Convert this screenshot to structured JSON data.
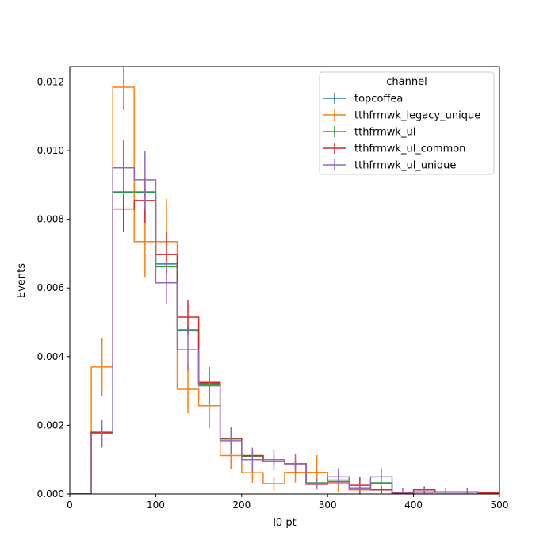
{
  "chart_data": {
    "type": "line",
    "xlabel": "l0 pt",
    "ylabel": "Events",
    "xlim": [
      0,
      500
    ],
    "ylim": [
      0,
      0.01245
    ],
    "grid": false,
    "legend": {
      "title": "channel",
      "placement": "top-right"
    },
    "xticks": [
      0,
      100,
      200,
      300,
      400,
      500
    ],
    "yticks": [
      0.0,
      0.002,
      0.004,
      0.006,
      0.008,
      0.01,
      0.012
    ],
    "xtick_labels": [
      "0",
      "100",
      "200",
      "300",
      "400",
      "500"
    ],
    "ytick_labels": [
      "0.000",
      "0.002",
      "0.004",
      "0.006",
      "0.008",
      "0.010",
      "0.012"
    ],
    "bin_edges": [
      0,
      25,
      50,
      75,
      100,
      125,
      150,
      175,
      200,
      225,
      250,
      275,
      300,
      325,
      350,
      375,
      400,
      425,
      450,
      475,
      500
    ],
    "series": [
      {
        "name": "topcoffea",
        "color": "#1f77b4",
        "values": [
          0.0,
          0.00178,
          0.00878,
          0.00878,
          0.0067,
          0.00478,
          0.00322,
          0.00162,
          0.0011,
          0.00095,
          0.00088,
          0.00032,
          0.0004,
          0.00018,
          0.00032,
          3e-05,
          6e-05,
          6e-05,
          6e-05,
          3e-05
        ],
        "errors": [
          0.0,
          6e-05,
          0.0001,
          0.0001,
          8e-05,
          7e-05,
          6e-05,
          4e-05,
          3e-05,
          3e-05,
          3e-05,
          2e-05,
          2e-05,
          1e-05,
          2e-05,
          1e-05,
          1e-05,
          1e-05,
          1e-05,
          1e-05
        ]
      },
      {
        "name": "tthfrmwk_legacy_unique",
        "color": "#ff7f0e",
        "values": [
          0.0,
          0.0037,
          0.01185,
          0.00735,
          0.00735,
          0.00305,
          0.00257,
          0.00112,
          0.00062,
          0.0003,
          0.00063,
          0.00063,
          0.0003,
          0.00012,
          0.00012,
          0.0,
          0.0,
          0.0,
          0.0,
          0.0
        ],
        "errors": [
          0.0,
          0.00085,
          0.00067,
          0.00105,
          0.00125,
          0.0007,
          0.00065,
          0.0004,
          0.0003,
          0.0002,
          0.0003,
          0.0005,
          0.00025,
          0.00012,
          0.00012,
          0.0,
          0.0,
          0.0,
          0.0,
          0.0
        ]
      },
      {
        "name": "tthfrmwk_ul",
        "color": "#2ca02c",
        "values": [
          0.0,
          0.00178,
          0.0088,
          0.0088,
          0.00662,
          0.00475,
          0.0032,
          0.0016,
          0.0011,
          0.00095,
          0.00088,
          0.00032,
          0.0004,
          0.00018,
          0.00032,
          3e-05,
          6e-05,
          6e-05,
          6e-05,
          3e-05
        ],
        "errors": [
          0.0,
          6e-05,
          0.0001,
          0.0001,
          8e-05,
          7e-05,
          6e-05,
          4e-05,
          3e-05,
          3e-05,
          3e-05,
          2e-05,
          2e-05,
          1e-05,
          2e-05,
          1e-05,
          1e-05,
          1e-05,
          1e-05,
          1e-05
        ]
      },
      {
        "name": "tthfrmwk_ul_common",
        "color": "#d62728",
        "values": [
          0.0,
          0.0018,
          0.0083,
          0.00855,
          0.00698,
          0.00515,
          0.00325,
          0.00162,
          0.00112,
          0.00095,
          0.00088,
          0.00028,
          0.00035,
          0.00025,
          0.00012,
          3e-05,
          0.00012,
          6e-05,
          6e-05,
          3e-05
        ],
        "errors": [
          0.0,
          0.0001,
          0.00065,
          0.00065,
          0.00065,
          0.0005,
          0.0003,
          0.00018,
          0.00012,
          0.0001,
          0.0001,
          6e-05,
          8e-05,
          0.00025,
          0.0001,
          3e-05,
          0.0001,
          5e-05,
          5e-05,
          3e-05
        ]
      },
      {
        "name": "tthfrmwk_ul_unique",
        "color": "#9467bd",
        "values": [
          0.0,
          0.00175,
          0.0095,
          0.00915,
          0.00615,
          0.0042,
          0.00315,
          0.00155,
          0.001,
          0.001,
          0.00088,
          0.0003,
          0.0005,
          0.00015,
          0.0005,
          5e-05,
          5e-05,
          5e-05,
          5e-05,
          0.0
        ],
        "errors": [
          0.0,
          0.0004,
          0.0008,
          0.00085,
          0.0006,
          0.0006,
          0.00055,
          0.0004,
          0.00035,
          0.0003,
          0.00028,
          0.00015,
          0.00025,
          0.00015,
          0.00025,
          0.00012,
          0.00012,
          0.00012,
          0.00012,
          0.0
        ]
      }
    ]
  }
}
